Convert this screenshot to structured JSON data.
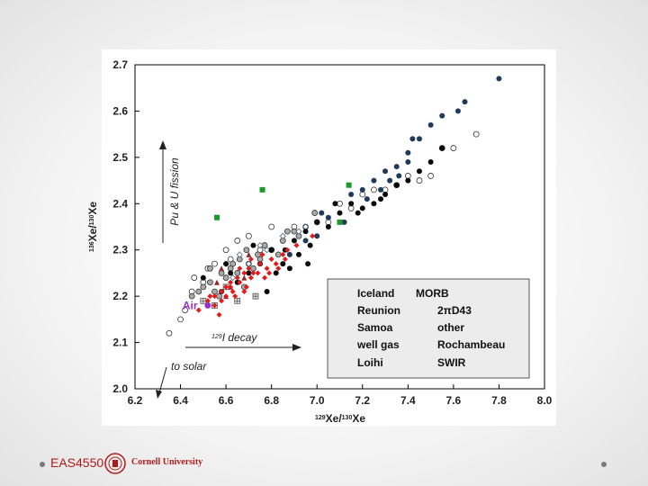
{
  "footer": {
    "course": "EAS4550",
    "university": "Cornell University"
  },
  "colors": {
    "iceland": "#e31a1c",
    "samoa": "#8c2d2d",
    "well_gas": "#1a9a2a",
    "air": "#9b30c8",
    "morb_dark": "#0a0a0a",
    "morb_other": "#1f3a5a",
    "brand": "#b31b1b"
  },
  "chart_data": {
    "type": "scatter",
    "xlabel": "129Xe/130Xe",
    "ylabel": "136Xe/130Xe",
    "xlim": [
      6.2,
      8.0
    ],
    "ylim": [
      2.0,
      2.7
    ],
    "x_ticks": [
      "6.2",
      "6.4",
      "6.6",
      "6.8",
      "7.0",
      "7.2",
      "7.4",
      "7.6",
      "7.8",
      "8.0"
    ],
    "y_ticks": [
      "2.0",
      "2.1",
      "2.2",
      "2.3",
      "2.4",
      "2.5",
      "2.6",
      "2.7"
    ],
    "annotations": {
      "fission": "Pu & U fission",
      "decay": "I decay",
      "decay_superscript": "129",
      "solar": "to solar",
      "air": "Air"
    },
    "legend": {
      "position": "bottom-right",
      "morb_heading": "MORB",
      "items_left": [
        "Iceland",
        "Reunion",
        "Samoa",
        "well gas",
        "Loihi"
      ],
      "items_right": [
        "2πD43",
        "other",
        "Rochambeau",
        "SWIR"
      ]
    },
    "series": [
      {
        "name": "Iceland",
        "marker": "diamond",
        "points": [
          [
            6.48,
            2.17
          ],
          [
            6.52,
            2.19
          ],
          [
            6.55,
            2.2
          ],
          [
            6.58,
            2.21
          ],
          [
            6.6,
            2.22
          ],
          [
            6.62,
            2.23
          ],
          [
            6.65,
            2.24
          ],
          [
            6.68,
            2.25
          ],
          [
            6.7,
            2.26
          ],
          [
            6.72,
            2.25
          ],
          [
            6.75,
            2.27
          ],
          [
            6.78,
            2.26
          ],
          [
            6.8,
            2.28
          ],
          [
            6.82,
            2.27
          ],
          [
            6.85,
            2.29
          ],
          [
            6.55,
            2.18
          ],
          [
            6.6,
            2.2
          ],
          [
            6.63,
            2.21
          ],
          [
            6.66,
            2.23
          ],
          [
            6.69,
            2.22
          ],
          [
            6.74,
            2.25
          ],
          [
            6.77,
            2.24
          ],
          [
            6.83,
            2.26
          ],
          [
            6.58,
            2.19
          ],
          [
            6.62,
            2.22
          ],
          [
            6.71,
            2.24
          ],
          [
            6.79,
            2.25
          ],
          [
            6.86,
            2.28
          ],
          [
            6.87,
            2.3
          ],
          [
            6.98,
            2.33
          ],
          [
            6.57,
            2.16
          ],
          [
            6.64,
            2.2
          ],
          [
            6.68,
            2.21
          ],
          [
            6.53,
            2.2
          ],
          [
            6.66,
            2.26
          ],
          [
            6.71,
            2.28
          ],
          [
            6.76,
            2.29
          ],
          [
            6.91,
            2.31
          ]
        ]
      },
      {
        "name": "Reunion",
        "marker": "open-diamond",
        "points": [
          [
            6.6,
            2.27
          ],
          [
            6.66,
            2.29
          ],
          [
            6.75,
            2.31
          ],
          [
            6.85,
            2.33
          ],
          [
            6.95,
            2.35
          ],
          [
            7.0,
            2.36
          ],
          [
            6.78,
            2.3
          ],
          [
            6.92,
            2.34
          ],
          [
            6.63,
            2.24
          ],
          [
            6.7,
            2.27
          ]
        ]
      },
      {
        "name": "Samoa",
        "marker": "triangle",
        "points": [
          [
            6.58,
            2.26
          ],
          [
            6.62,
            2.22
          ],
          [
            6.7,
            2.29
          ],
          [
            6.68,
            2.24
          ],
          [
            6.6,
            2.2
          ],
          [
            6.56,
            2.23
          ]
        ]
      },
      {
        "name": "well gas",
        "marker": "square",
        "points": [
          [
            6.56,
            2.37
          ],
          [
            6.76,
            2.43
          ],
          [
            7.14,
            2.44
          ],
          [
            7.1,
            2.36
          ]
        ]
      },
      {
        "name": "Loihi",
        "marker": "boxplus",
        "points": [
          [
            6.5,
            2.19
          ],
          [
            6.55,
            2.18
          ],
          [
            6.6,
            2.22
          ],
          [
            6.65,
            2.19
          ],
          [
            6.73,
            2.2
          ]
        ]
      },
      {
        "name": "2πD43",
        "marker": "circle-black",
        "points": [
          [
            6.5,
            2.24
          ],
          [
            6.6,
            2.27
          ],
          [
            6.72,
            2.31
          ],
          [
            6.8,
            2.3
          ],
          [
            6.9,
            2.32
          ],
          [
            6.95,
            2.34
          ],
          [
            7.0,
            2.36
          ],
          [
            7.05,
            2.35
          ],
          [
            7.1,
            2.38
          ],
          [
            7.15,
            2.4
          ],
          [
            7.2,
            2.39
          ],
          [
            7.25,
            2.4
          ],
          [
            7.3,
            2.42
          ],
          [
            7.35,
            2.44
          ],
          [
            7.4,
            2.45
          ],
          [
            7.45,
            2.47
          ],
          [
            7.5,
            2.49
          ],
          [
            7.55,
            2.52
          ],
          [
            6.97,
            2.31
          ],
          [
            6.92,
            2.29
          ],
          [
            6.85,
            2.27
          ],
          [
            6.75,
            2.27
          ],
          [
            6.7,
            2.25
          ],
          [
            6.65,
            2.23
          ],
          [
            6.62,
            2.25
          ],
          [
            6.78,
            2.21
          ],
          [
            6.88,
            2.26
          ],
          [
            7.08,
            2.4
          ],
          [
            7.18,
            2.38
          ],
          [
            7.28,
            2.41
          ],
          [
            6.52,
            2.18
          ],
          [
            6.58,
            2.21
          ],
          [
            6.96,
            2.27
          ],
          [
            6.82,
            2.25
          ],
          [
            6.86,
            2.3
          ]
        ]
      },
      {
        "name": "other",
        "marker": "circle-navy",
        "points": [
          [
            7.0,
            2.33
          ],
          [
            7.05,
            2.37
          ],
          [
            7.12,
            2.36
          ],
          [
            7.15,
            2.42
          ],
          [
            7.2,
            2.43
          ],
          [
            7.25,
            2.45
          ],
          [
            7.3,
            2.47
          ],
          [
            7.35,
            2.48
          ],
          [
            7.4,
            2.51
          ],
          [
            7.42,
            2.54
          ],
          [
            7.45,
            2.54
          ],
          [
            7.5,
            2.57
          ],
          [
            7.55,
            2.59
          ],
          [
            7.62,
            2.6
          ],
          [
            7.65,
            2.62
          ],
          [
            7.8,
            2.67
          ],
          [
            7.28,
            2.43
          ],
          [
            7.32,
            2.45
          ],
          [
            7.22,
            2.41
          ],
          [
            6.95,
            2.32
          ],
          [
            7.02,
            2.38
          ],
          [
            7.36,
            2.46
          ],
          [
            7.4,
            2.49
          ],
          [
            6.88,
            2.29
          ]
        ]
      },
      {
        "name": "Rochambeau",
        "marker": "circle-gray",
        "points": [
          [
            6.45,
            2.2
          ],
          [
            6.5,
            2.22
          ],
          [
            6.55,
            2.21
          ],
          [
            6.6,
            2.24
          ],
          [
            6.65,
            2.25
          ],
          [
            6.7,
            2.27
          ],
          [
            6.75,
            2.28
          ],
          [
            6.8,
            2.3
          ],
          [
            6.85,
            2.32
          ],
          [
            6.9,
            2.34
          ],
          [
            6.95,
            2.35
          ],
          [
            6.58,
            2.25
          ],
          [
            6.63,
            2.27
          ],
          [
            6.68,
            2.22
          ],
          [
            6.72,
            2.26
          ],
          [
            6.77,
            2.31
          ],
          [
            6.83,
            2.29
          ],
          [
            6.92,
            2.33
          ],
          [
            7.0,
            2.36
          ],
          [
            6.48,
            2.21
          ],
          [
            6.53,
            2.23
          ],
          [
            6.57,
            2.2
          ],
          [
            6.62,
            2.26
          ],
          [
            6.66,
            2.28
          ],
          [
            6.74,
            2.29
          ],
          [
            6.87,
            2.34
          ],
          [
            6.99,
            2.38
          ],
          [
            6.53,
            2.26
          ],
          [
            6.69,
            2.3
          ]
        ]
      },
      {
        "name": "SWIR",
        "marker": "circle-open",
        "points": [
          [
            6.35,
            2.12
          ],
          [
            6.4,
            2.15
          ],
          [
            6.42,
            2.17
          ],
          [
            6.45,
            2.21
          ],
          [
            6.5,
            2.23
          ],
          [
            6.55,
            2.27
          ],
          [
            6.6,
            2.3
          ],
          [
            6.65,
            2.32
          ],
          [
            6.7,
            2.33
          ],
          [
            6.8,
            2.35
          ],
          [
            6.9,
            2.35
          ],
          [
            7.1,
            2.4
          ],
          [
            7.2,
            2.42
          ],
          [
            7.25,
            2.43
          ],
          [
            7.3,
            2.43
          ],
          [
            7.35,
            2.44
          ],
          [
            7.4,
            2.46
          ],
          [
            7.45,
            2.45
          ],
          [
            7.5,
            2.46
          ],
          [
            7.55,
            2.52
          ],
          [
            7.6,
            2.52
          ],
          [
            7.7,
            2.55
          ],
          [
            6.75,
            2.3
          ],
          [
            6.62,
            2.28
          ],
          [
            6.52,
            2.26
          ],
          [
            6.46,
            2.24
          ],
          [
            7.15,
            2.39
          ],
          [
            7.05,
            2.36
          ]
        ]
      }
    ]
  }
}
